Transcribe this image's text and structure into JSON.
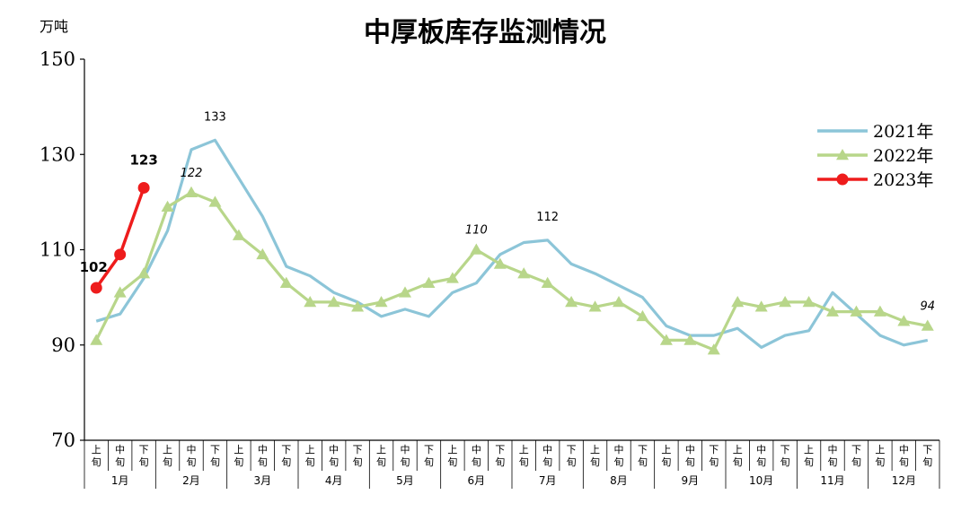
{
  "chart_data": {
    "type": "line",
    "title": "中厚板库存监测情况",
    "unit_label": "万吨",
    "ylim": [
      70,
      150
    ],
    "yticks": [
      70,
      90,
      110,
      130,
      150
    ],
    "period_labels": [
      "上旬",
      "中旬",
      "下旬"
    ],
    "months": [
      "1月",
      "2月",
      "3月",
      "4月",
      "5月",
      "6月",
      "7月",
      "8月",
      "9月",
      "10月",
      "11月",
      "12月"
    ],
    "legend_position": "top-right",
    "series": [
      {
        "name": "2021年",
        "color": "#8cc5d8",
        "marker": "none",
        "values": [
          95,
          96.5,
          104,
          114,
          131,
          133,
          125,
          117,
          106.5,
          104.5,
          101,
          99,
          96,
          97.5,
          96,
          101,
          103,
          109,
          111.5,
          112,
          107,
          105,
          102.5,
          100,
          94,
          92,
          92,
          93.5,
          89.5,
          92,
          93,
          101,
          96.5,
          92,
          90,
          91
        ]
      },
      {
        "name": "2022年",
        "color": "#b8d68a",
        "marker": "triangle",
        "values": [
          91,
          101,
          105,
          119,
          122,
          120,
          113,
          109,
          103,
          99,
          99,
          98,
          99,
          101,
          103,
          104,
          110,
          107,
          105,
          103,
          99,
          98,
          99,
          96,
          91,
          91,
          89,
          99,
          98,
          99,
          99,
          97,
          97,
          97,
          95,
          94
        ]
      },
      {
        "name": "2023年",
        "color": "#ee1c1c",
        "marker": "circle",
        "values": [
          102,
          109,
          123
        ]
      }
    ],
    "annotations": [
      {
        "text": "133",
        "series": 0,
        "index": 5,
        "style": "normal"
      },
      {
        "text": "112",
        "series": 0,
        "index": 19,
        "style": "normal"
      },
      {
        "text": "122",
        "series": 1,
        "index": 4,
        "style": "italic"
      },
      {
        "text": "110",
        "series": 1,
        "index": 16,
        "style": "italic"
      },
      {
        "text": "94",
        "series": 1,
        "index": 35,
        "style": "italic"
      },
      {
        "text": "102",
        "series": 2,
        "index": 0,
        "style": "bold"
      },
      {
        "text": "123",
        "series": 2,
        "index": 2,
        "style": "bold"
      }
    ]
  }
}
